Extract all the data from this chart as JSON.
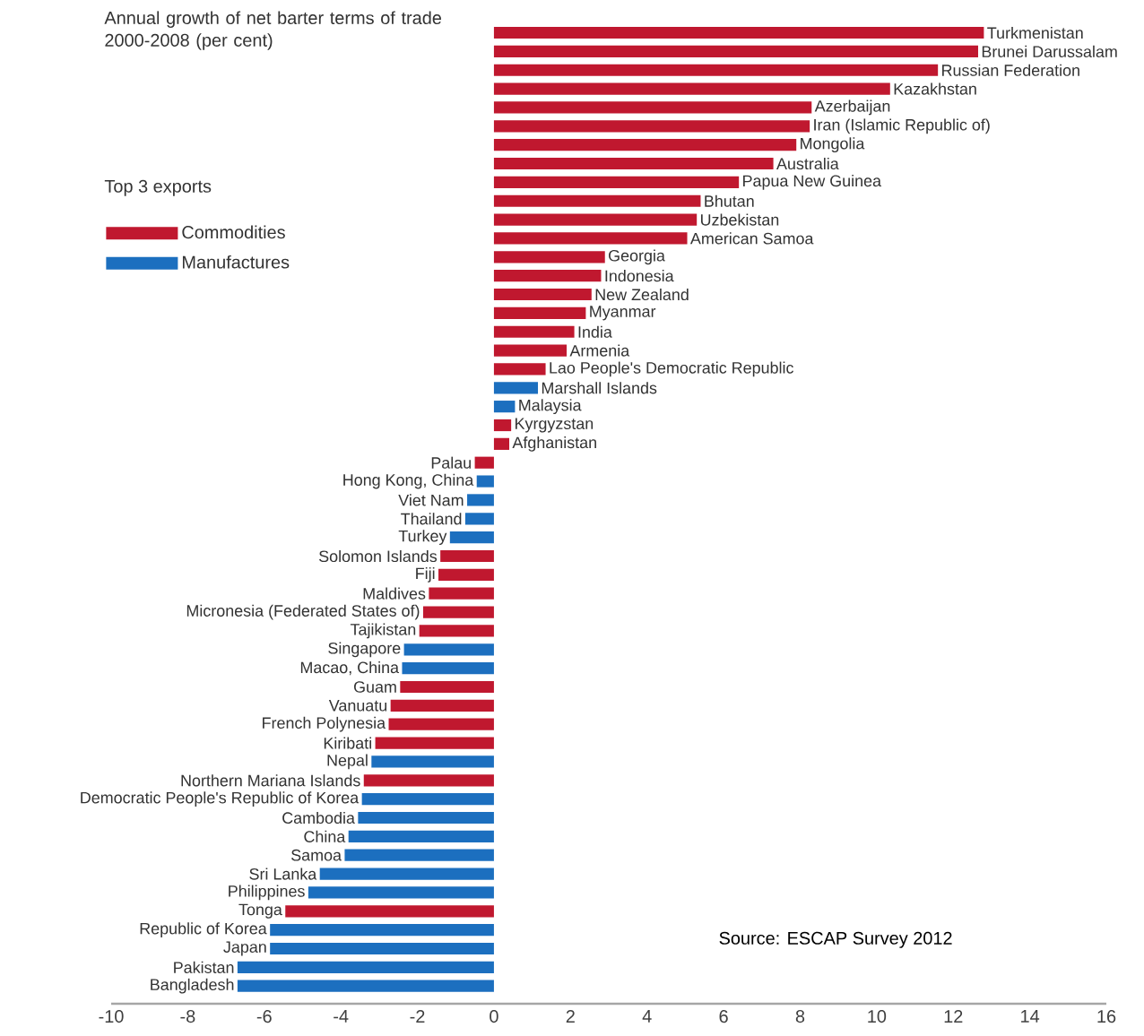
{
  "chart_data": {
    "type": "bar",
    "orientation": "horizontal",
    "title": "Annual growth of net barter terms of trade 2000-2008 (per cent)",
    "legend_title": "Top 3 exports",
    "legend": "top left",
    "categories": [
      "Turkmenistan",
      "Brunei Darussalam",
      "Russian Federation",
      "Kazakhstan",
      "Azerbaijan",
      "Iran (Islamic Republic of)",
      "Mongolia",
      "Australia",
      "Papua New Guinea",
      "Bhutan",
      "Uzbekistan",
      "American Samoa",
      "Georgia",
      "Indonesia",
      "New Zealand",
      "Myanmar",
      "India",
      "Armenia",
      "Lao People's Democratic Republic",
      "Marshall Islands",
      "Malaysia",
      "Kyrgyzstan",
      "Afghanistan",
      "Palau",
      "Hong Kong, China",
      "Viet Nam",
      "Thailand",
      "Turkey",
      "Solomon Islands",
      "Fiji",
      "Maldives",
      "Micronesia (Federated States of)",
      "Tajikistan",
      "Singapore",
      "Macao, China",
      "Guam",
      "Vanuatu",
      "French Polynesia",
      "Kiribati",
      "Nepal",
      "Northern Mariana Islands",
      "Democratic People's Republic of Korea",
      "Cambodia",
      "China",
      "Samoa",
      "Sri Lanka",
      "Philippines",
      "Tonga",
      "Republic of Korea",
      "Japan",
      "Pakistan",
      "Bangladesh"
    ],
    "series": [
      {
        "name": "Commodities",
        "color": "#c0182f",
        "values": [
          12.8,
          12.65,
          11.6,
          10.35,
          8.3,
          8.25,
          7.9,
          7.3,
          6.4,
          5.4,
          5.3,
          5.05,
          2.9,
          2.8,
          2.55,
          2.4,
          2.1,
          1.9,
          1.35,
          null,
          null,
          0.45,
          0.4,
          -0.5,
          null,
          null,
          null,
          null,
          -1.4,
          -1.45,
          -1.7,
          -1.85,
          -1.95,
          null,
          null,
          -2.45,
          -2.7,
          -2.75,
          -3.1,
          null,
          -3.4,
          null,
          null,
          null,
          null,
          null,
          null,
          -5.45,
          null,
          null,
          null,
          null
        ]
      },
      {
        "name": "Manufactures",
        "color": "#1c6fbf",
        "values": [
          null,
          null,
          null,
          null,
          null,
          null,
          null,
          null,
          null,
          null,
          null,
          null,
          null,
          null,
          null,
          null,
          null,
          null,
          null,
          1.15,
          0.55,
          null,
          null,
          null,
          -0.45,
          -0.7,
          -0.75,
          -1.15,
          null,
          null,
          null,
          null,
          null,
          -2.35,
          -2.4,
          null,
          null,
          null,
          null,
          -3.2,
          null,
          -3.45,
          -3.55,
          -3.8,
          -3.9,
          -4.55,
          -4.85,
          null,
          -5.85,
          -5.85,
          -6.7,
          -6.7
        ]
      }
    ],
    "xlim": [
      -10,
      16
    ],
    "xticks": [
      -10,
      -8,
      -6,
      -4,
      -2,
      0,
      2,
      4,
      6,
      8,
      10,
      12,
      14,
      16
    ],
    "annotations": [
      "Source: ESCAP Survey 2012"
    ]
  }
}
